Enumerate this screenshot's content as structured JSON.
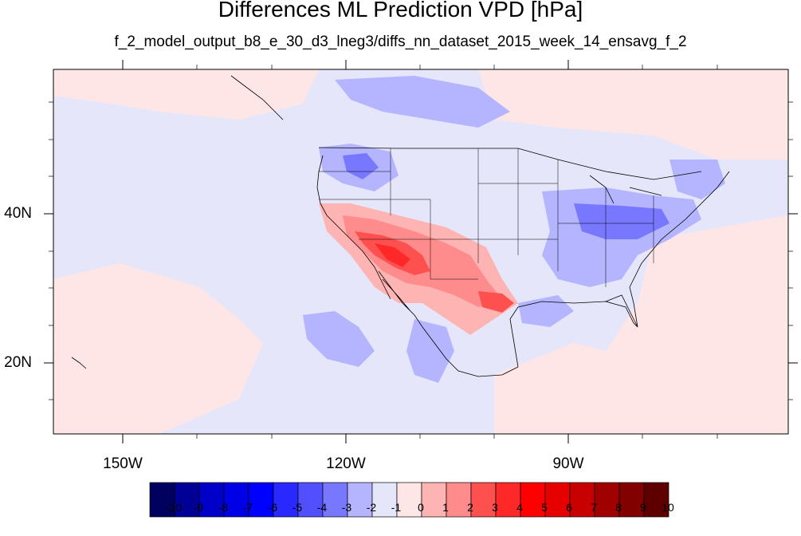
{
  "title": "Differences ML Prediction VPD [hPa]",
  "subtitle": "f_2_model_output_b8_e_30_d3_lneg3/diffs_nn_dataset_2015_week_14_ensavg_f_2",
  "lat_labels": [
    "40N",
    "20N"
  ],
  "lon_labels": [
    "150W",
    "120W",
    "90W"
  ],
  "colorbar": {
    "labels": [
      "-10",
      "-9",
      "-8",
      "-7",
      "-6",
      "-5",
      "-4",
      "-3",
      "-2",
      "-1",
      "0",
      "1",
      "2",
      "3",
      "4",
      "5",
      "6",
      "7",
      "8",
      "9",
      "10"
    ],
    "colors": [
      "#00005e",
      "#000096",
      "#0000c8",
      "#0000e6",
      "#0000ff",
      "#2828ff",
      "#5050ff",
      "#7878ff",
      "#b4b4ff",
      "#e6e6fa",
      "#ffe6e6",
      "#ffb4b4",
      "#ff8c8c",
      "#ff5050",
      "#ff2828",
      "#ff0000",
      "#e60000",
      "#c80000",
      "#a00000",
      "#820000",
      "#5e0000"
    ]
  },
  "map_colors": {
    "background_neg": "#e6e6fa",
    "background_pos": "#ffe6e6",
    "neg_1": "#b4b4ff",
    "neg_2": "#7878ff",
    "pos_1": "#ffb4b4",
    "pos_2": "#ff8c8c",
    "pos_3": "#ff5050",
    "pos_4": "#ff2828"
  }
}
